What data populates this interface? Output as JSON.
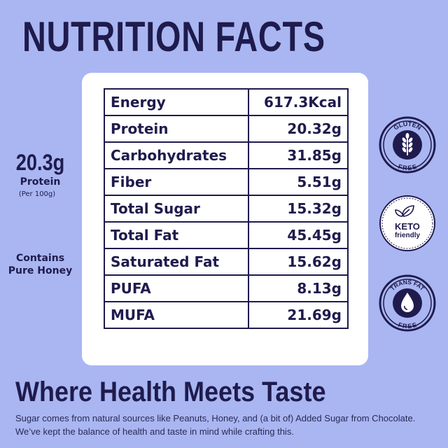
{
  "title": "NUTRITION FACTS",
  "nutrition": [
    {
      "name": "Energy",
      "value": "617.3Kcal"
    },
    {
      "name": "Protein",
      "value": "20.32g"
    },
    {
      "name": "Carbohydrates",
      "value": "31.85g"
    },
    {
      "name": "Fiber",
      "value": "5.51g"
    },
    {
      "name": "Total Sugar",
      "value": "15.32g"
    },
    {
      "name": "Total Fat",
      "value": "45.45g"
    },
    {
      "name": "Saturated Fat",
      "value": "15.62g"
    },
    {
      "name": "PUFA",
      "value": "8.13g"
    },
    {
      "name": "MUFA",
      "value": "21.69g"
    }
  ],
  "left_panel": {
    "protein_value": "20.3g",
    "protein_label": "Protein",
    "per_note": "(Per 100g)",
    "honey_line1": "Contains",
    "honey_line2": "Pure Honey"
  },
  "badges": {
    "gluten_free": {
      "top": "GLUTEN",
      "bottom": "FREE",
      "icon": "wheat-icon"
    },
    "keto": {
      "top": "KETO",
      "bottom": "friendly",
      "icon": "leaf-icon"
    },
    "trans_fat": {
      "top": "TRANS FAT",
      "bottom": "FREE",
      "icon": "drop-icon"
    }
  },
  "colors": {
    "background": "#a9b6f2",
    "navy": "#1f1b4d",
    "card": "#ffffff"
  },
  "tagline": "Where Health Meets Taste",
  "description": "Sugar comes from natural sources like Peanuts, Honey, and (a bit of) Added Sugar from Chocolate. We’ve kept the balance of health and taste in mind while crafting this."
}
